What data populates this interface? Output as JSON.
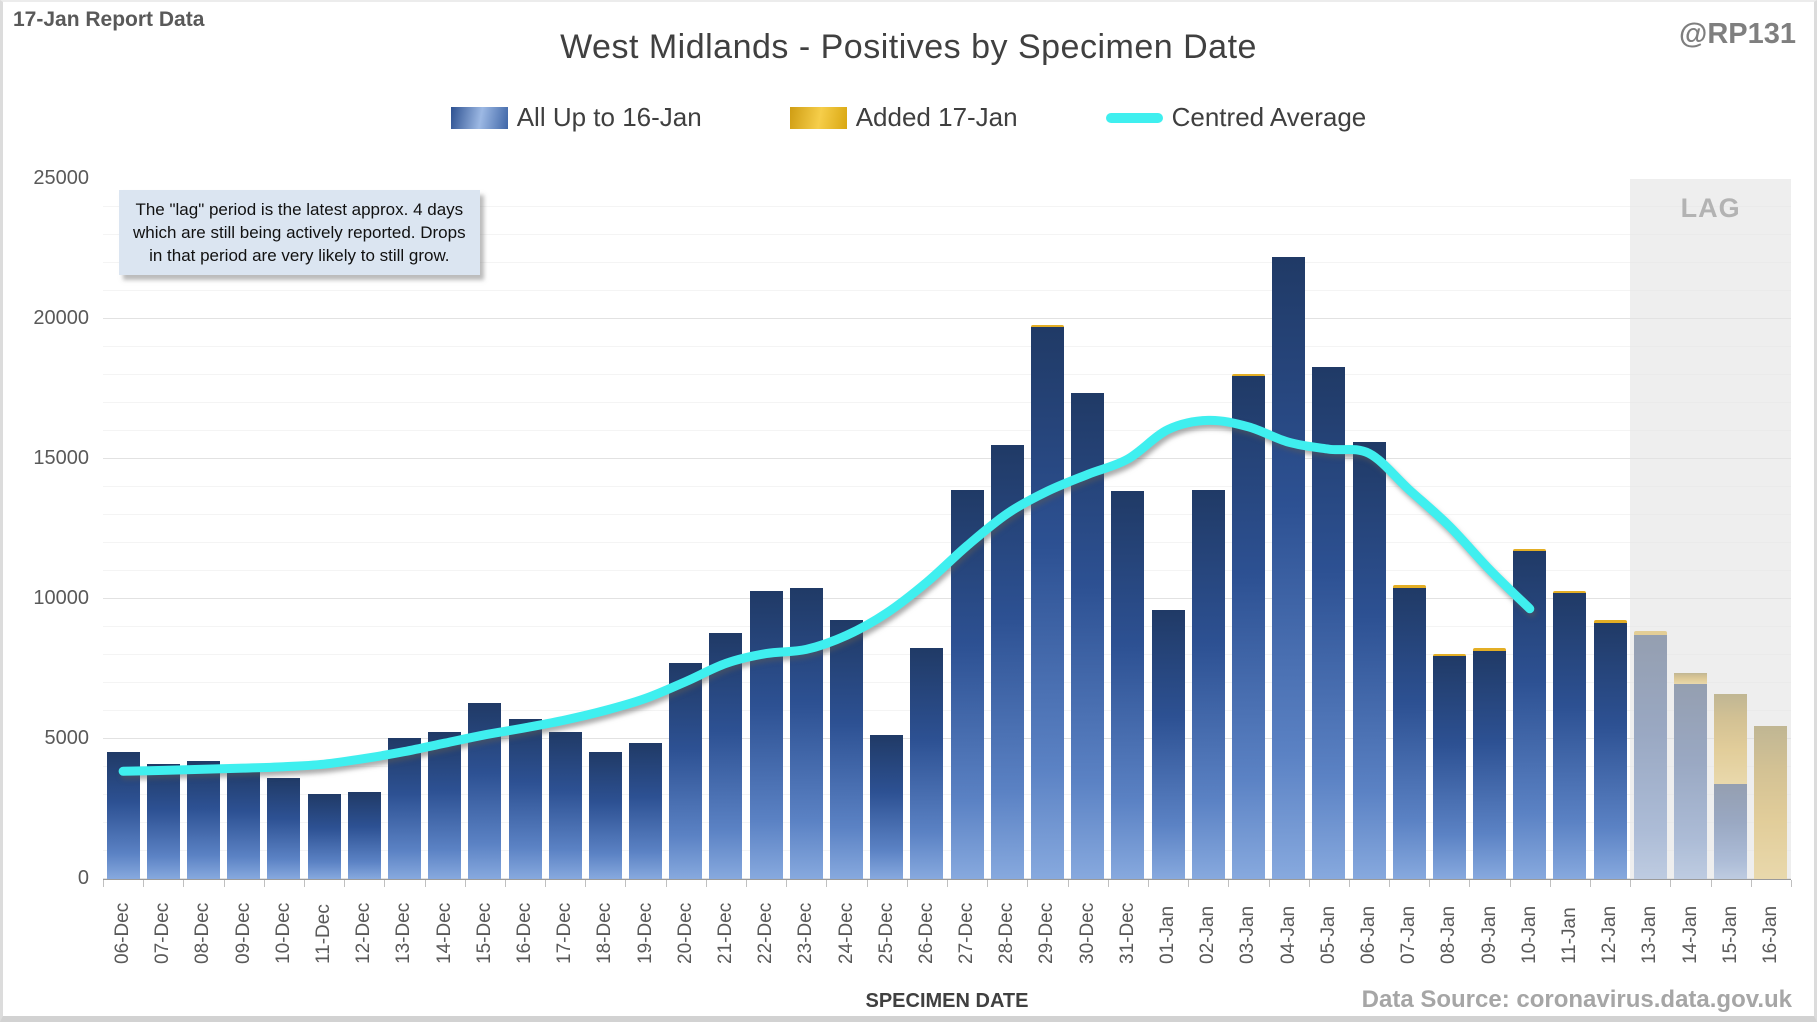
{
  "header": {
    "report_label": "17-Jan Report Data",
    "title": "West Midlands - Positives by Specimen Date",
    "handle": "@RP131"
  },
  "annotation": {
    "lines": [
      "The \"lag\" period is the latest approx. 4 days",
      "which are still being actively reported.  Drops",
      "in that period are very likely to still grow."
    ]
  },
  "xaxis": {
    "title": "SPECIMEN DATE"
  },
  "footer": {
    "source": "Data Source: coronavirus.data.gov.uk"
  },
  "colors": {
    "bar_blue_top": "#203a66",
    "bar_blue_bottom": "#87a9de",
    "bar_gold": "#e0ac28",
    "line_cyan": "#3fefef",
    "lag_band": "#e2e2e2",
    "annotation_bg": "#dbe5f1",
    "text_gray": "#595959"
  },
  "chart_data": {
    "type": "bar",
    "title": "West Midlands - Positives by Specimen Date",
    "xlabel": "SPECIMEN DATE",
    "ylabel": "",
    "ylim": [
      0,
      25000
    ],
    "ytick_step": 5000,
    "minor_step": 1000,
    "grid": true,
    "legend_position": "top",
    "categories": [
      "06-Dec",
      "07-Dec",
      "08-Dec",
      "09-Dec",
      "10-Dec",
      "11-Dec",
      "12-Dec",
      "13-Dec",
      "14-Dec",
      "15-Dec",
      "16-Dec",
      "17-Dec",
      "18-Dec",
      "19-Dec",
      "20-Dec",
      "21-Dec",
      "22-Dec",
      "23-Dec",
      "24-Dec",
      "25-Dec",
      "26-Dec",
      "27-Dec",
      "28-Dec",
      "29-Dec",
      "30-Dec",
      "31-Dec",
      "01-Jan",
      "02-Jan",
      "03-Jan",
      "04-Jan",
      "05-Jan",
      "06-Jan",
      "07-Jan",
      "08-Jan",
      "09-Jan",
      "10-Jan",
      "11-Jan",
      "12-Jan",
      "13-Jan",
      "14-Jan",
      "15-Jan",
      "16-Jan"
    ],
    "series": [
      {
        "name": "All Up to 16-Jan",
        "type": "bar",
        "values": [
          4550,
          4100,
          4200,
          4000,
          3600,
          3050,
          3100,
          5050,
          5250,
          6300,
          5700,
          5250,
          4550,
          4850,
          7700,
          8800,
          10300,
          10400,
          9250,
          5150,
          8250,
          13900,
          15500,
          19700,
          17350,
          13850,
          9600,
          13900,
          17950,
          22200,
          18300,
          15600,
          10400,
          7950,
          8150,
          11700,
          10200,
          9150,
          8700,
          6970,
          3400,
          0
        ]
      },
      {
        "name": "Added 17-Jan",
        "type": "bar",
        "values": [
          0,
          0,
          0,
          0,
          0,
          0,
          0,
          0,
          0,
          0,
          0,
          0,
          0,
          0,
          0,
          0,
          0,
          0,
          0,
          0,
          0,
          0,
          0,
          100,
          0,
          0,
          0,
          0,
          100,
          0,
          0,
          0,
          100,
          100,
          100,
          100,
          100,
          100,
          150,
          380,
          3200,
          5450
        ]
      },
      {
        "name": "Centred Average",
        "type": "line",
        "values": [
          3850,
          3880,
          3920,
          3960,
          4010,
          4100,
          4300,
          4550,
          4850,
          5150,
          5400,
          5680,
          6020,
          6450,
          7050,
          7700,
          8050,
          8200,
          8700,
          9500,
          10600,
          11900,
          13050,
          13850,
          14450,
          15000,
          16050,
          16380,
          16150,
          15600,
          15350,
          15200,
          13900,
          12600,
          11050,
          9650,
          null,
          null,
          null,
          null,
          null,
          null
        ]
      }
    ],
    "lag_region": {
      "start_category": "13-Jan",
      "label": "LAG"
    }
  }
}
